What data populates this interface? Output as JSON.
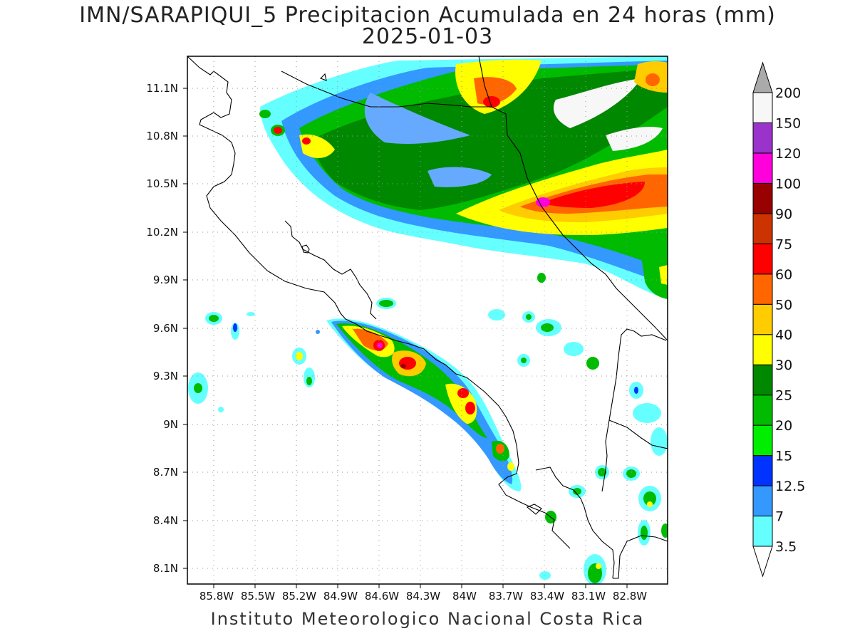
{
  "title": "IMN/SARAPIQUI_5 Precipitacion Acumulada en 24 horas (mm)",
  "date": "2025-01-03",
  "footer": "Instituto Meteorologico Nacional Costa Rica",
  "map": {
    "lon_range": [
      -85.97,
      -82.63
    ],
    "lat_range": [
      8.0,
      11.3
    ],
    "lat_ticks": [
      "11.1N",
      "10.8N",
      "10.5N",
      "10.2N",
      "9.9N",
      "9.6N",
      "9.3N",
      "9N",
      "8.7N",
      "8.4N",
      "8.1N"
    ],
    "lon_ticks": [
      "85.8W",
      "85.5W",
      "85.2W",
      "84.9W",
      "84.6W",
      "84.3W",
      "84W",
      "83.7W",
      "83.4W",
      "83.1W",
      "82.8W"
    ],
    "gridlines": "dotted"
  },
  "colorbar": {
    "labels": [
      "3.5",
      "7",
      "12.5",
      "15",
      "20",
      "25",
      "30",
      "40",
      "50",
      "60",
      "75",
      "90",
      "100",
      "120",
      "150",
      "200"
    ],
    "colors": [
      "#66ffff",
      "#3399ff",
      "#0033ff",
      "#00ee00",
      "#00bb00",
      "#008800",
      "#ffff00",
      "#ffcc00",
      "#ff6600",
      "#ff0000",
      "#cc3300",
      "#990000",
      "#ff00dd",
      "#9933cc",
      "#f7f7f7",
      "#aaaaaa"
    ],
    "extend": "both"
  }
}
